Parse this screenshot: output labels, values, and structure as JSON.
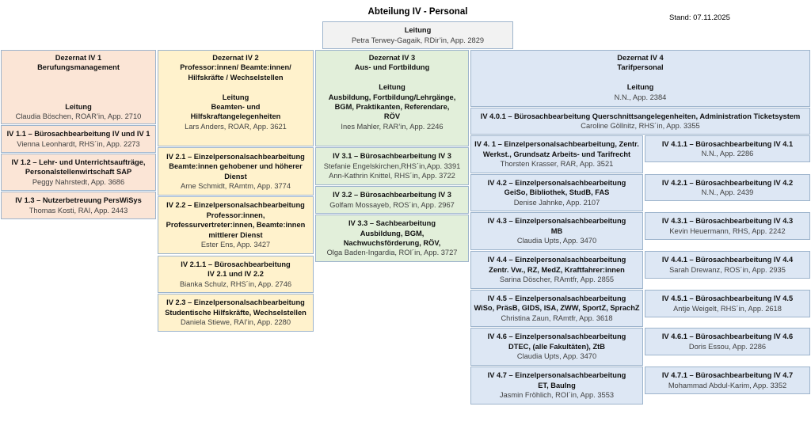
{
  "header": {
    "title": "Abteilung IV - Personal",
    "stand": "Stand: 07.11.2025"
  },
  "colors": {
    "gray": "#f2f2f2",
    "peach": "#fbe5d6",
    "yellow": "#fff2cc",
    "green": "#e2efda",
    "blue": "#dde7f4",
    "border": "#9db4cc"
  },
  "boxes": [
    {
      "id": "leitung",
      "lines": [
        {
          "text": "Leitung",
          "bold": true
        },
        {
          "text": "Petra Terwey-Gagaik, RDir’in, App. 2829",
          "bold": false
        }
      ]
    },
    {
      "id": "dezernat-iv-1",
      "lines": [
        {
          "text": "Dezernat IV 1",
          "bold": true
        },
        {
          "text": "Berufungsmanagement",
          "bold": true
        },
        {
          "text": "",
          "bold": false
        },
        {
          "text": "",
          "bold": false
        },
        {
          "text": "",
          "bold": false
        },
        {
          "text": "Leitung",
          "bold": true
        },
        {
          "text": "Claudia Böschen, ROAR’in, App. 2710",
          "bold": false
        }
      ]
    },
    {
      "id": "iv-1-1",
      "lines": [
        {
          "text": "IV 1.1 – Bürosachbearbeitung IV und IV 1",
          "bold": true
        },
        {
          "text": "Vienna Leonhardt, RHS´in, App. 2273",
          "bold": false
        }
      ]
    },
    {
      "id": "iv-1-2",
      "lines": [
        {
          "text": "IV 1.2 – Lehr- und Unterrichtsaufträge,",
          "bold": true
        },
        {
          "text": "Personalstellenwirtschaft SAP",
          "bold": true
        },
        {
          "text": "Peggy Nahrstedt, App. 3686",
          "bold": false
        }
      ]
    },
    {
      "id": "iv-1-3",
      "lines": [
        {
          "text": "IV 1.3 – Nutzerbetreuung PersWiSys",
          "bold": true
        },
        {
          "text": "Thomas Kosti, RAI, App. 2443",
          "bold": false
        }
      ]
    },
    {
      "id": "dezernat-iv-2",
      "lines": [
        {
          "text": "Dezernat IV 2",
          "bold": true
        },
        {
          "text": "Professor:innen/ Beamte:innen/",
          "bold": true
        },
        {
          "text": "Hilfskräfte / Wechselstellen",
          "bold": true
        },
        {
          "text": "",
          "bold": false
        },
        {
          "text": "Leitung",
          "bold": true
        },
        {
          "text": "Beamten- und",
          "bold": true
        },
        {
          "text": "Hilfskraftangelegenheiten",
          "bold": true
        },
        {
          "text": "Lars Anders, ROAR, App. 3621",
          "bold": false
        }
      ]
    },
    {
      "id": "iv-2-1",
      "lines": [
        {
          "text": "IV 2.1 – Einzelpersonalsachbearbeitung",
          "bold": true
        },
        {
          "text": "Beamte:innen gehobener und höherer",
          "bold": true
        },
        {
          "text": "Dienst",
          "bold": true
        },
        {
          "text": "Arne Schmidt, RAmtm, App. 3774",
          "bold": false
        }
      ]
    },
    {
      "id": "iv-2-2",
      "lines": [
        {
          "text": "IV 2.2 – Einzelpersonalsachbearbeitung",
          "bold": true
        },
        {
          "text": "Professor:innen,",
          "bold": true
        },
        {
          "text": "Professurvertreter:innen,  Beamte:innen",
          "bold": true
        },
        {
          "text": "mittlerer Dienst",
          "bold": true
        },
        {
          "text": "Ester Ens, App. 3427",
          "bold": false
        }
      ]
    },
    {
      "id": "iv-2-1-1",
      "lines": [
        {
          "text": "IV 2.1.1 – Bürosachbearbeitung",
          "bold": true
        },
        {
          "text": "IV 2.1  und IV 2.2",
          "bold": true
        },
        {
          "text": "Bianka Schulz, RHS´in, App. 2746",
          "bold": false
        }
      ]
    },
    {
      "id": "iv-2-3",
      "lines": [
        {
          "text": "IV 2.3 – Einzelpersonalsachbearbeitung",
          "bold": true
        },
        {
          "text": "Studentische Hilfskräfte, Wechselstellen",
          "bold": true
        },
        {
          "text": "Daniela Stiewe, RAI’in, App. 2280",
          "bold": false
        }
      ]
    },
    {
      "id": "dezernat-iv-3",
      "lines": [
        {
          "text": "Dezernat IV 3",
          "bold": true
        },
        {
          "text": "Aus- und Fortbildung",
          "bold": true
        },
        {
          "text": "",
          "bold": false
        },
        {
          "text": "Leitung",
          "bold": true
        },
        {
          "text": "Ausbildung, Fortbildung/Lehrgänge,",
          "bold": true
        },
        {
          "text": "BGM, Praktikanten, Referendare,",
          "bold": true
        },
        {
          "text": "RÖV",
          "bold": true
        },
        {
          "text": "Ines Mahler, RAR’in, App. 2246",
          "bold": false
        }
      ]
    },
    {
      "id": "iv-3-1",
      "lines": [
        {
          "text": "IV 3.1 – Bürosachbearbeitung IV 3",
          "bold": true
        },
        {
          "text": "Stefanie Engelskirchen,RHS´in,App. 3391",
          "bold": false
        },
        {
          "text": "Ann-Kathrin Knittel, RHS´in, App. 3722",
          "bold": false
        }
      ]
    },
    {
      "id": "iv-3-2",
      "lines": [
        {
          "text": "IV 3.2 – Bürosachbearbeitung IV 3",
          "bold": true
        },
        {
          "text": "Golfam Mossayeb, ROS´in, App. 2967",
          "bold": false
        }
      ]
    },
    {
      "id": "iv-3-3",
      "lines": [
        {
          "text": "IV 3.3 – Sachbearbeitung",
          "bold": true
        },
        {
          "text": "Ausbildung, BGM,",
          "bold": true
        },
        {
          "text": "Nachwuchsförderung, RÖV,",
          "bold": true
        },
        {
          "text": "Olga Baden-Ingardia, ROI´in, App. 3727",
          "bold": false
        }
      ]
    },
    {
      "id": "dezernat-iv-4",
      "lines": [
        {
          "text": "Dezernat IV 4",
          "bold": true
        },
        {
          "text": "Tarifpersonal",
          "bold": true
        },
        {
          "text": "",
          "bold": false
        },
        {
          "text": "Leitung",
          "bold": true
        },
        {
          "text": "N.N., App. 2384",
          "bold": false
        }
      ]
    },
    {
      "id": "iv-4-0-1",
      "lines": [
        {
          "text": "IV 4.0.1 – Bürosachbearbeitung Querschnittsangelegenheiten, Administration Ticketsystem",
          "bold": true
        },
        {
          "text": "Caroline Göllnitz, RHS´in, App. 3355",
          "bold": false
        }
      ]
    },
    {
      "id": "iv-4-1",
      "lines": [
        {
          "text": "IV 4. 1 – Einzelpersonalsachbearbeitung, Zentr.",
          "bold": true
        },
        {
          "text": "Werkst., Grundsatz Arbeits- und Tarifrecht",
          "bold": true
        },
        {
          "text": "Thorsten Krasser, RAR, App. 3521",
          "bold": false
        }
      ]
    },
    {
      "id": "iv-4-1-1",
      "lines": [
        {
          "text": "IV 4.1.1 – Bürosachbearbeitung IV 4.1",
          "bold": true
        },
        {
          "text": "N.N., App. 2286",
          "bold": false
        }
      ]
    },
    {
      "id": "iv-4-2",
      "lines": [
        {
          "text": "IV 4.2 – Einzelpersonalsachbearbeitung",
          "bold": true
        },
        {
          "text": "GeiSo, Bibliothek, StudB, FAS",
          "bold": true
        },
        {
          "text": "Denise Jahnke, App. 2107",
          "bold": false
        }
      ]
    },
    {
      "id": "iv-4-2-1",
      "lines": [
        {
          "text": "IV 4.2.1 – Bürosachbearbeitung IV 4.2",
          "bold": true
        },
        {
          "text": "N.N., App. 2439",
          "bold": false
        }
      ]
    },
    {
      "id": "iv-4-3",
      "lines": [
        {
          "text": "IV 4.3 – Einzelpersonalsachbearbeitung",
          "bold": true
        },
        {
          "text": "MB",
          "bold": true
        },
        {
          "text": "Claudia Upts, App. 3470",
          "bold": false
        }
      ]
    },
    {
      "id": "iv-4-3-1",
      "lines": [
        {
          "text": "IV 4.3.1 – Bürosachbearbeitung IV 4.3",
          "bold": true
        },
        {
          "text": "Kevin Heuermann, RHS, App. 2242",
          "bold": false
        }
      ]
    },
    {
      "id": "iv-4-4",
      "lines": [
        {
          "text": "IV 4.4 – Einzelpersonalsachbearbeitung",
          "bold": true
        },
        {
          "text": "Zentr. Vw., RZ, MedZ, Kraftfahrer:innen",
          "bold": true
        },
        {
          "text": "Sarina Döscher, RAmtfr, App. 2855",
          "bold": false
        }
      ]
    },
    {
      "id": "iv-4-4-1",
      "lines": [
        {
          "text": "IV 4.4.1 – Bürosachbearbeitung IV 4.4",
          "bold": true
        },
        {
          "text": "Sarah Drewanz, ROS´in, App. 2935",
          "bold": false
        }
      ]
    },
    {
      "id": "iv-4-5",
      "lines": [
        {
          "text": "IV 4.5 – Einzelpersonalsachbearbeitung",
          "bold": true
        },
        {
          "text": "WiSo, PräsB, GIDS, ISA, ZWW, SportZ, SprachZ",
          "bold": true
        },
        {
          "text": "Christina Zaun, RAmtfr, App. 3618",
          "bold": false
        }
      ]
    },
    {
      "id": "iv-4-5-1",
      "lines": [
        {
          "text": "IV 4.5.1 – Bürosachbearbeitung IV 4.5",
          "bold": true
        },
        {
          "text": "Antje Weigelt, RHS´in, App. 2618",
          "bold": false
        }
      ]
    },
    {
      "id": "iv-4-6",
      "lines": [
        {
          "text": "IV 4.6 – Einzelpersonalsachbearbeitung",
          "bold": true
        },
        {
          "text": "DTEC, (alle Fakultäten), ZtB",
          "bold": true
        },
        {
          "text": "Claudia Upts, App. 3470",
          "bold": false
        }
      ]
    },
    {
      "id": "iv-4-6-1",
      "lines": [
        {
          "text": "IV 4.6.1 – Bürosachbearbeitung IV 4.6",
          "bold": true
        },
        {
          "text": "Doris Essou, App. 2286",
          "bold": false
        }
      ]
    },
    {
      "id": "iv-4-7",
      "lines": [
        {
          "text": "IV 4.7 – Einzelpersonalsachbearbeitung",
          "bold": true
        },
        {
          "text": "ET, BauIng",
          "bold": true
        },
        {
          "text": "Jasmin Fröhlich, ROI´in,  App. 3553",
          "bold": false
        }
      ]
    },
    {
      "id": "iv-4-7-1",
      "lines": [
        {
          "text": "IV 4.7.1 – Bürosachbearbeitung IV 4.7",
          "bold": true
        },
        {
          "text": "Mohammad Abdul-Karim, App. 3352",
          "bold": false
        }
      ]
    }
  ]
}
